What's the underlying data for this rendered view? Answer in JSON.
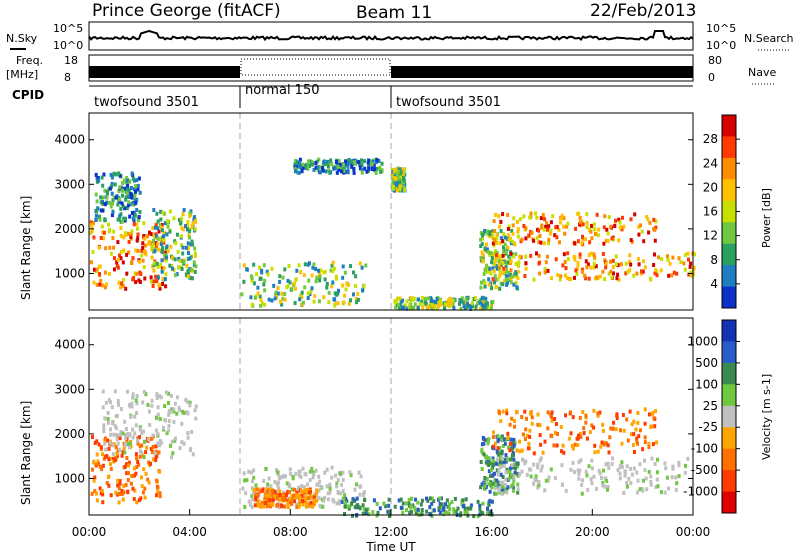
{
  "header": {
    "station": "Prince George (fitACF)",
    "beam": "Beam 11",
    "date": "22/Feb/2013"
  },
  "status_panels": {
    "nsky_label": "N.Sky",
    "nsearch_label": "N.Search",
    "log_ticks_left": [
      "10^5",
      "10^0"
    ],
    "log_ticks_right": [
      "10^5",
      "10^0"
    ],
    "freq_label": "Freq.",
    "freq_unit": "[MHz]",
    "freq_ticks": [
      "18",
      "8"
    ],
    "nave_label": "Nave",
    "nave_ticks": [
      "80",
      "0"
    ],
    "cpid_label": "CPID",
    "modes": [
      {
        "name": "twofsound 3501",
        "start_hour": 0,
        "end_hour": 6
      },
      {
        "name": "normal 150",
        "start_hour": 6,
        "end_hour": 12
      },
      {
        "name": "twofsound 3501",
        "start_hour": 12,
        "end_hour": 24
      }
    ]
  },
  "chart_data": [
    {
      "type": "heatmap",
      "title": "",
      "xlabel": "",
      "ylabel": "Slant Range [km]",
      "xlim": [
        0,
        24
      ],
      "ylim": [
        180,
        4600
      ],
      "y_ticks": [
        1000,
        2000,
        3000,
        4000
      ],
      "colorbar": {
        "label": "Power [dB]",
        "ticks": [
          "28",
          "24",
          "20",
          "16",
          "12",
          "8",
          "4"
        ],
        "colors": [
          "#d40000",
          "#ff3a00",
          "#ff8c00",
          "#ffc000",
          "#c8e000",
          "#70c840",
          "#2aa060",
          "#1e7ec0",
          "#0a32c8"
        ]
      },
      "mode_boundaries": [
        6,
        12
      ],
      "regions": [
        {
          "t0": 0.0,
          "t1": 3.0,
          "r0": 700,
          "r1": 2200,
          "level": "high"
        },
        {
          "t0": 0.2,
          "t1": 2.0,
          "r0": 2200,
          "r1": 3300,
          "level": "low"
        },
        {
          "t0": 2.5,
          "t1": 4.2,
          "r0": 900,
          "r1": 2500,
          "level": "mid"
        },
        {
          "t0": 6.0,
          "t1": 11.0,
          "r0": 300,
          "r1": 1300,
          "level": "mid"
        },
        {
          "t0": 8.0,
          "t1": 11.6,
          "r0": 3300,
          "r1": 3600,
          "level": "low"
        },
        {
          "t0": 12.0,
          "t1": 12.5,
          "r0": 2900,
          "r1": 3400,
          "level": "mid"
        },
        {
          "t0": 12.0,
          "t1": 16.0,
          "r0": 250,
          "r1": 500,
          "level": "mid"
        },
        {
          "t0": 15.5,
          "t1": 17.0,
          "r0": 700,
          "r1": 2000,
          "level": "mid"
        },
        {
          "t0": 16.0,
          "t1": 24.0,
          "r0": 900,
          "r1": 1500,
          "level": "high"
        },
        {
          "t0": 16.0,
          "t1": 22.5,
          "r0": 1700,
          "r1": 2400,
          "level": "high"
        }
      ]
    },
    {
      "type": "heatmap",
      "title": "",
      "xlabel": "Time UT",
      "ylabel": "Slant Range [km]",
      "xlim": [
        0,
        24
      ],
      "ylim": [
        180,
        4600
      ],
      "x_ticks": [
        "00:00",
        "04:00",
        "08:00",
        "12:00",
        "16:00",
        "20:00",
        "00:00"
      ],
      "y_ticks": [
        1000,
        2000,
        3000,
        4000
      ],
      "colorbar": {
        "label": "Velocity [m s-1]",
        "ticks": [
          "1000",
          "500",
          "100",
          "25",
          "-25",
          "-100",
          "-500",
          "-1000"
        ],
        "colors": [
          "#1432b4",
          "#2a5cc8",
          "#3a8a50",
          "#70c840",
          "#c0c0c0",
          "#ffa500",
          "#ff7000",
          "#ff3a00",
          "#e00000"
        ]
      },
      "mode_boundaries": [
        6,
        12
      ],
      "regions": [
        {
          "t0": 0.0,
          "t1": 2.8,
          "r0": 500,
          "r1": 2000,
          "level": "neg"
        },
        {
          "t0": 0.5,
          "t1": 4.2,
          "r0": 1500,
          "r1": 3000,
          "level": "gs"
        },
        {
          "t0": 6.0,
          "t1": 11.0,
          "r0": 400,
          "r1": 1300,
          "level": "gs"
        },
        {
          "t0": 6.5,
          "t1": 9.0,
          "r0": 400,
          "r1": 800,
          "level": "neg"
        },
        {
          "t0": 10.0,
          "t1": 16.0,
          "r0": 200,
          "r1": 600,
          "level": "pos"
        },
        {
          "t0": 15.5,
          "t1": 17.0,
          "r0": 700,
          "r1": 2000,
          "level": "pos"
        },
        {
          "t0": 16.0,
          "t1": 24.0,
          "r0": 700,
          "r1": 1500,
          "level": "gs"
        },
        {
          "t0": 16.0,
          "t1": 22.5,
          "r0": 1600,
          "r1": 2600,
          "level": "neg"
        }
      ]
    }
  ]
}
